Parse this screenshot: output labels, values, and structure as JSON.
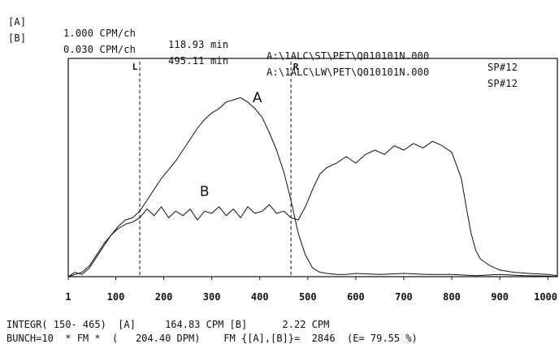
{
  "header": {
    "rows": [
      {
        "id": "[A]",
        "rate": "1.000 CPM/ch",
        "time": "118.93 min",
        "path": "A:\\1ALC\\ST\\PET\\Q010101N.000",
        "sp": "SP#12"
      },
      {
        "id": "[B]",
        "rate": "0.030 CPM/ch",
        "time": "495.11 min",
        "path": "A:\\1ALC\\LW\\PET\\Q010101N.000",
        "sp": "SP#12"
      }
    ]
  },
  "footer": {
    "line1": "INTEGR( 150- 465)  [A]     164.83 CPM [B]      2.22 CPM",
    "line2": "BUNCH=10  * FM *  (   204.40 DPM)    FM {[A],[B]}=  2846  (E= 79.55 %)"
  },
  "chart_data": {
    "type": "line",
    "x_ticks": [
      "1",
      "100",
      "200",
      "300",
      "400",
      "500",
      "600",
      "700",
      "800",
      "900",
      "1000"
    ],
    "xlim": [
      1,
      1020
    ],
    "ylim": [
      0,
      100
    ],
    "markers": [
      {
        "label": "L",
        "x": 150
      },
      {
        "label": "R",
        "x": 465
      }
    ],
    "series": [
      {
        "name": "A",
        "label_pos": [
          385,
          80
        ],
        "x": [
          1,
          15,
          30,
          45,
          60,
          75,
          90,
          105,
          120,
          135,
          150,
          165,
          180,
          195,
          210,
          225,
          240,
          255,
          270,
          285,
          300,
          315,
          330,
          345,
          360,
          375,
          390,
          405,
          420,
          435,
          450,
          465,
          480,
          495,
          510,
          525,
          540,
          560,
          580,
          600,
          650,
          700,
          750,
          800,
          850,
          900,
          950,
          1000,
          1020
        ],
        "y": [
          0,
          2,
          1,
          4,
          9,
          14,
          19,
          23,
          26,
          27,
          30,
          35,
          40,
          45,
          49,
          53,
          58,
          63,
          68,
          72,
          75,
          77,
          80,
          81,
          82,
          80,
          77,
          73,
          66,
          58,
          48,
          35,
          20,
          10,
          4,
          2,
          1.5,
          1,
          1,
          1.5,
          1,
          1.5,
          1,
          1,
          0.5,
          1,
          0.5,
          0.3,
          0
        ]
      },
      {
        "name": "B",
        "label_pos": [
          275,
          37
        ],
        "x": [
          1,
          15,
          30,
          45,
          60,
          75,
          90,
          105,
          120,
          135,
          150,
          165,
          180,
          195,
          210,
          225,
          240,
          255,
          270,
          285,
          300,
          315,
          330,
          345,
          360,
          375,
          390,
          405,
          420,
          435,
          450,
          465,
          480,
          495,
          510,
          525,
          540,
          560,
          580,
          600,
          620,
          640,
          660,
          680,
          700,
          720,
          740,
          760,
          780,
          800,
          820,
          830,
          840,
          850,
          860,
          880,
          900,
          930,
          960,
          1000,
          1020
        ],
        "y": [
          0,
          1,
          2,
          5,
          10,
          15,
          19,
          22,
          24,
          25,
          27,
          31,
          28,
          32,
          27,
          30,
          28,
          31,
          26,
          30,
          29,
          32,
          28,
          31,
          27,
          32,
          29,
          30,
          33,
          29,
          30,
          27,
          26,
          32,
          40,
          47,
          50,
          52,
          55,
          52,
          56,
          58,
          56,
          60,
          58,
          61,
          59,
          62,
          60,
          57,
          45,
          32,
          20,
          12,
          8,
          5,
          3,
          2,
          1.5,
          1,
          0.5
        ]
      }
    ]
  }
}
